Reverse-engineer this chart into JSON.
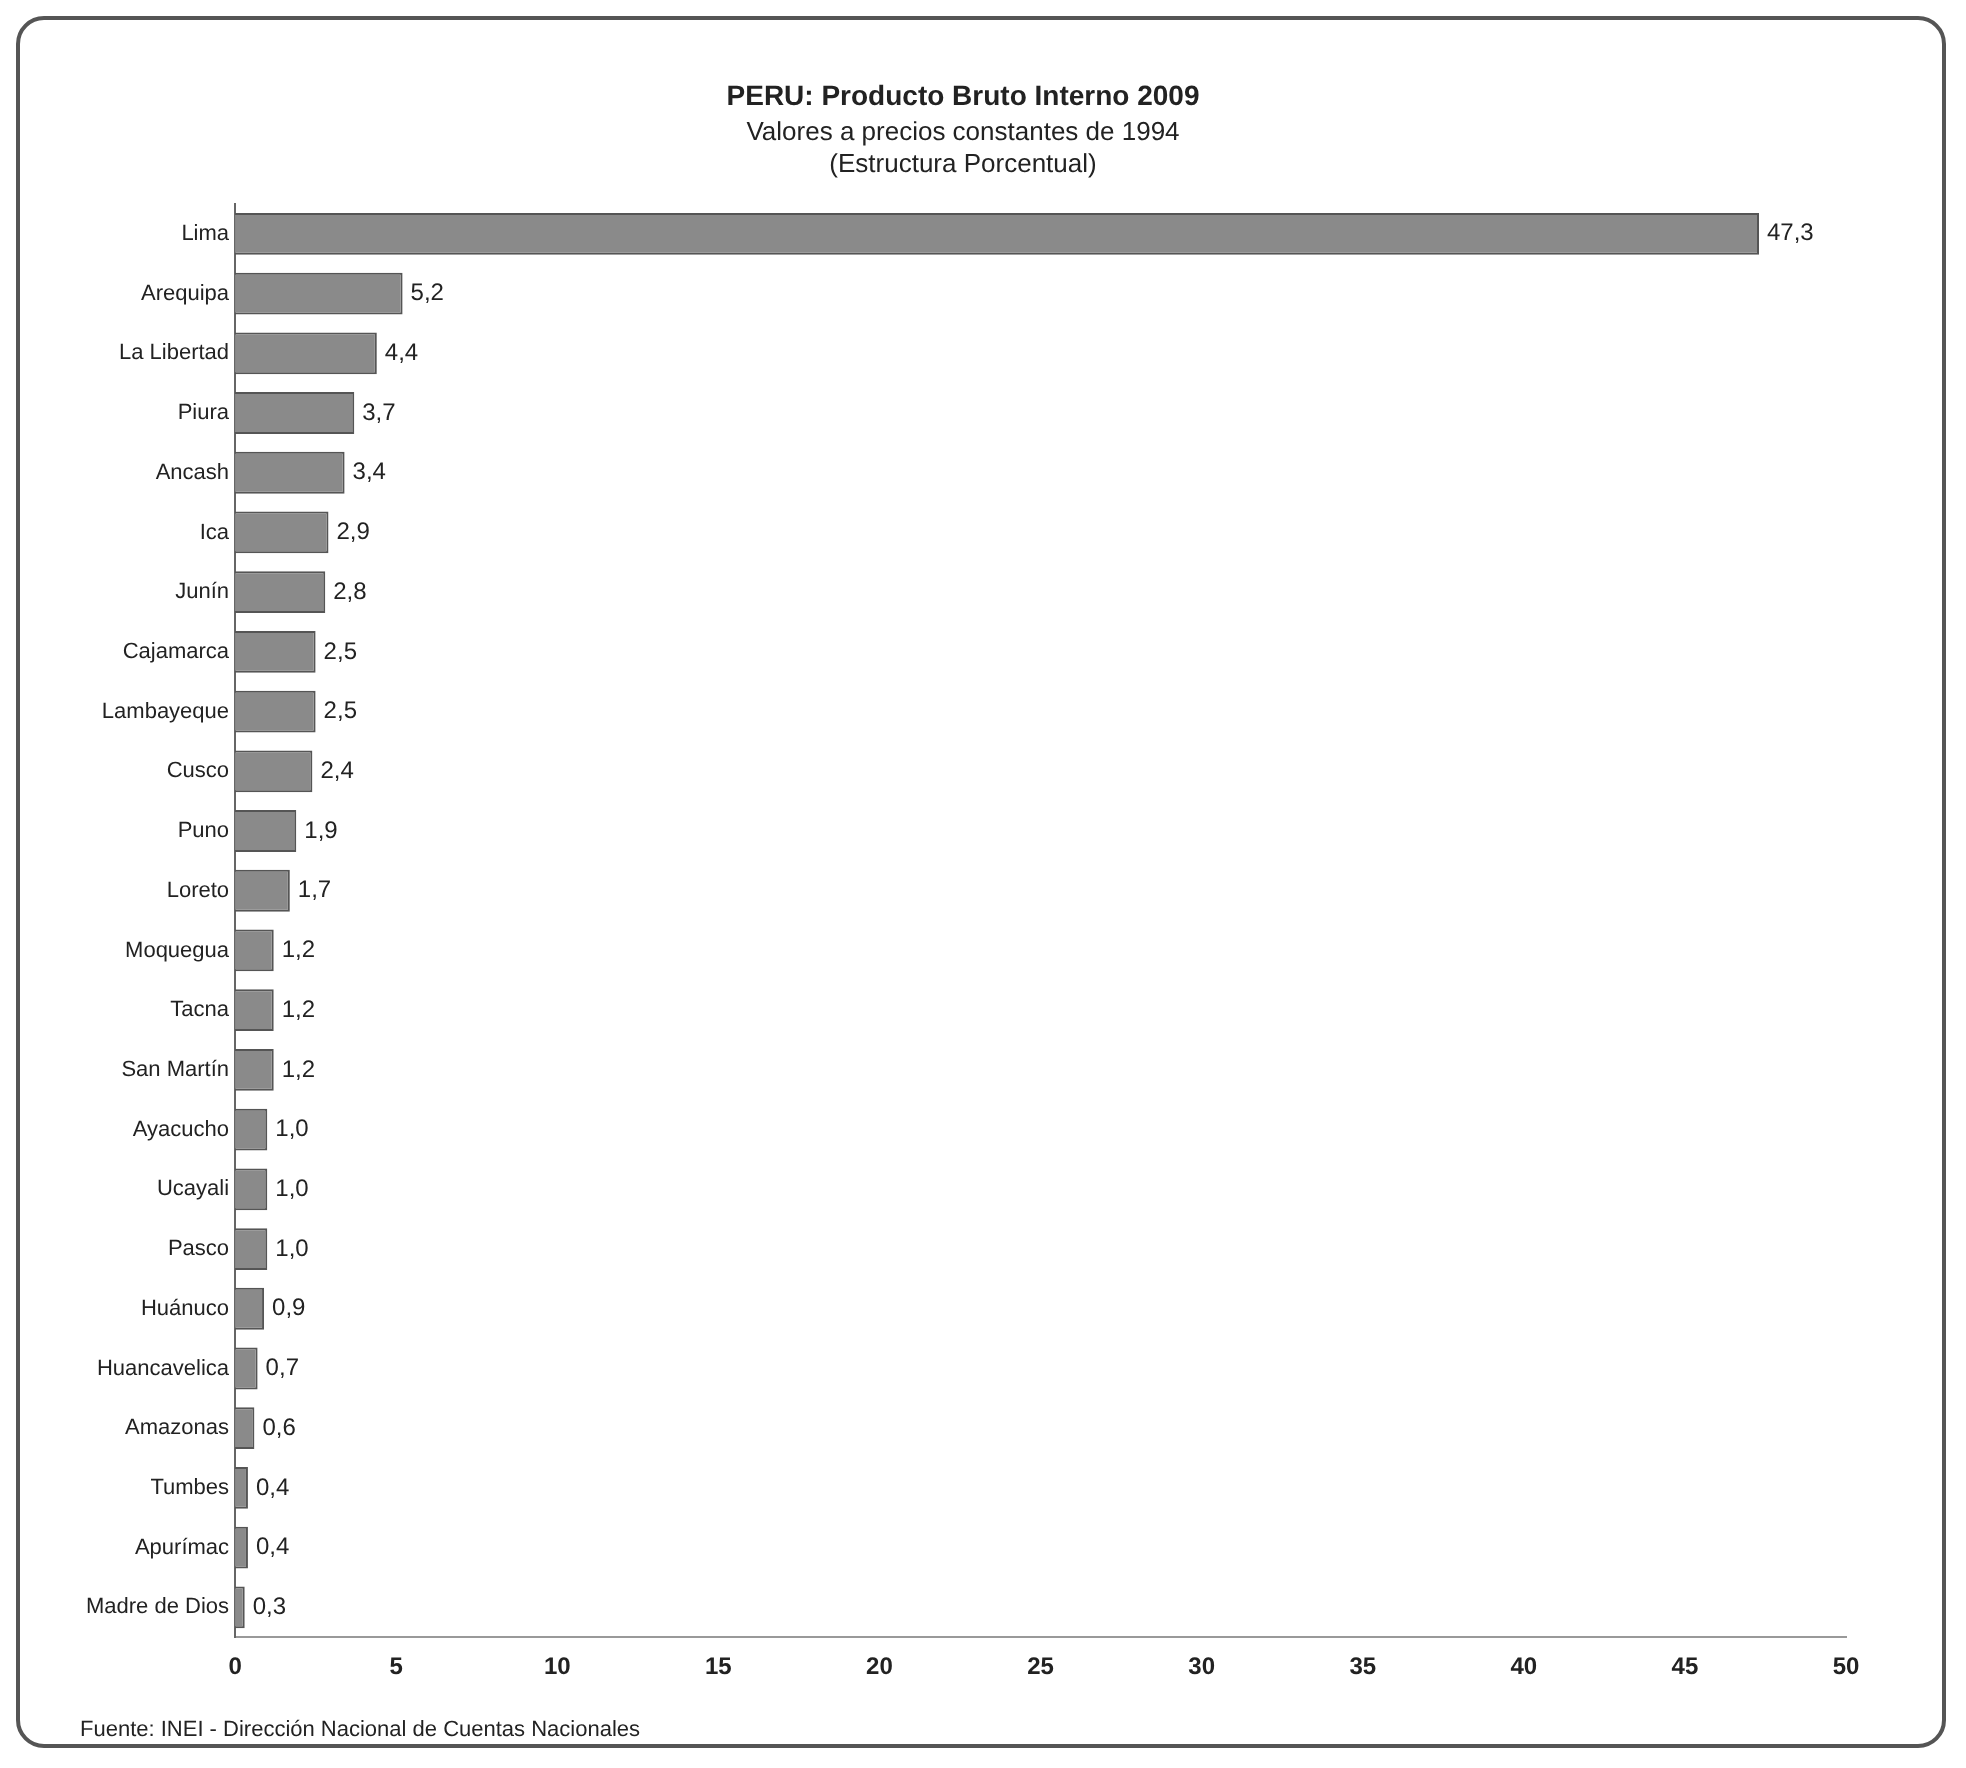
{
  "chart_data": {
    "type": "bar",
    "orientation": "horizontal",
    "title": "PERU: Producto Bruto Interno 2009",
    "subtitle": "Valores a precios constantes de 1994\n(Estructura Porcentual)",
    "categories": [
      "Lima",
      "Arequipa",
      "La Libertad",
      "Piura",
      "Ancash",
      "Ica",
      "Junín",
      "Cajamarca",
      "Lambayeque",
      "Cusco",
      "Puno",
      "Loreto",
      "Moquegua",
      "Tacna",
      "San Martín",
      "Ayacucho",
      "Ucayali",
      "Pasco",
      "Huánuco",
      "Huancavelica",
      "Amazonas",
      "Tumbes",
      "Apurímac",
      "Madre de Dios"
    ],
    "values": [
      47.3,
      5.2,
      4.4,
      3.7,
      3.4,
      2.9,
      2.8,
      2.5,
      2.5,
      2.4,
      1.9,
      1.7,
      1.2,
      1.2,
      1.2,
      1.0,
      1.0,
      1.0,
      0.9,
      0.7,
      0.6,
      0.4,
      0.4,
      0.3
    ],
    "value_labels": [
      "47,3",
      "5,2",
      "4,4",
      "3,7",
      "3,4",
      "2,9",
      "2,8",
      "2,5",
      "2,5",
      "2,4",
      "1,9",
      "1,7",
      "1,2",
      "1,2",
      "1,2",
      "1,0",
      "1,0",
      "1,0",
      "0,9",
      "0,7",
      "0,6",
      "0,4",
      "0,4",
      "0,3"
    ],
    "color": "#8a8a8a",
    "xlim": [
      0,
      50
    ],
    "xticks": [
      0,
      5,
      10,
      15,
      20,
      25,
      30,
      35,
      40,
      45,
      50
    ],
    "grid": false,
    "legend": false,
    "annotations": [
      "Fuente: INEI - Dirección Nacional de Cuentas Nacionales"
    ]
  }
}
